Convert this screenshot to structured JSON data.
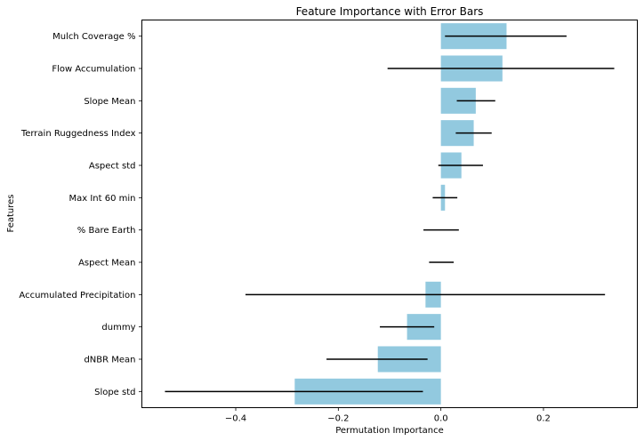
{
  "chart_data": {
    "type": "bar",
    "orientation": "horizontal",
    "title": "Feature Importance with Error Bars",
    "xlabel": "Permutation Importance",
    "ylabel": "Features",
    "categories": [
      "Mulch Coverage %",
      "Flow Accumulation",
      "Slope Mean",
      "Terrain Ruggedness Index",
      "Aspect std",
      "Max Int 60 min",
      "% Bare Earth",
      "Aspect Mean",
      "Accumulated Precipitation",
      "dummy",
      "dNBR Mean",
      "Slope std"
    ],
    "values": [
      0.128,
      0.12,
      0.068,
      0.064,
      0.04,
      0.008,
      0.0,
      0.0,
      -0.03,
      -0.066,
      -0.123,
      -0.285
    ],
    "error_bars": [
      {
        "low": 0.008,
        "high": 0.245
      },
      {
        "low": -0.104,
        "high": 0.338
      },
      {
        "low": 0.031,
        "high": 0.106
      },
      {
        "low": 0.029,
        "high": 0.099
      },
      {
        "low": -0.005,
        "high": 0.082
      },
      {
        "low": -0.016,
        "high": 0.032
      },
      {
        "low": -0.034,
        "high": 0.035
      },
      {
        "low": -0.023,
        "high": 0.025
      },
      {
        "low": -0.381,
        "high": 0.32
      },
      {
        "low": -0.119,
        "high": -0.013
      },
      {
        "low": -0.223,
        "high": -0.026
      },
      {
        "low": -0.538,
        "high": -0.035
      }
    ],
    "xticks": [
      -0.4,
      -0.2,
      0.0,
      0.2
    ],
    "xtick_labels": [
      "−0.4",
      "−0.2",
      "0.0",
      "0.2"
    ],
    "xlim": [
      -0.583,
      0.383
    ],
    "grid": false,
    "bar_color": "#92c9df",
    "error_color": "#000000"
  }
}
